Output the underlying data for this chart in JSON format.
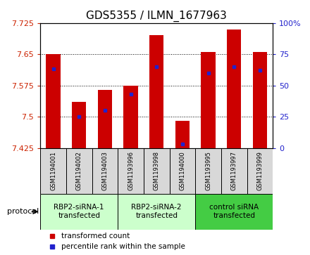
{
  "title": "GDS5355 / ILMN_1677963",
  "samples": [
    "GSM1194001",
    "GSM1194002",
    "GSM1194003",
    "GSM1193996",
    "GSM1193998",
    "GSM1194000",
    "GSM1193995",
    "GSM1193997",
    "GSM1193999"
  ],
  "transformed_counts": [
    7.65,
    7.535,
    7.565,
    7.575,
    7.695,
    7.49,
    7.655,
    7.71,
    7.655
  ],
  "percentile_ranks": [
    63,
    25,
    30,
    43,
    65,
    3,
    60,
    65,
    62
  ],
  "ylim": [
    7.425,
    7.725
  ],
  "yticks": [
    7.425,
    7.5,
    7.575,
    7.65,
    7.725
  ],
  "right_yticks": [
    0,
    25,
    50,
    75,
    100
  ],
  "bar_color": "#cc0000",
  "dot_color": "#2222cc",
  "left_tick_color": "#cc2200",
  "right_tick_color": "#2222cc",
  "groups": [
    {
      "label": "RBP2-siRNA-1\ntransfected",
      "indices": [
        0,
        1,
        2
      ],
      "color": "#ccffcc"
    },
    {
      "label": "RBP2-siRNA-2\ntransfected",
      "indices": [
        3,
        4,
        5
      ],
      "color": "#ccffcc"
    },
    {
      "label": "control siRNA\ntransfected",
      "indices": [
        6,
        7,
        8
      ],
      "color": "#44cc44"
    }
  ],
  "sample_box_color": "#d8d8d8",
  "protocol_label": "protocol",
  "legend_items": [
    {
      "label": "transformed count",
      "color": "#cc0000"
    },
    {
      "label": "percentile rank within the sample",
      "color": "#2222cc"
    }
  ],
  "bar_bottom": 7.425,
  "bar_width": 0.55,
  "title_fontsize": 11,
  "tick_fontsize": 8,
  "sample_fontsize": 6,
  "group_fontsize": 7.5,
  "legend_fontsize": 7.5
}
